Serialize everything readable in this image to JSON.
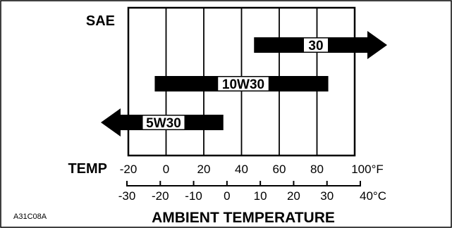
{
  "chart_data": {
    "type": "range-chart",
    "title": "",
    "xlabel": "AMBIENT TEMPERATURE",
    "ylabel": "SAE",
    "row_label": "TEMP",
    "figure_code": "A31C08A",
    "fahrenheit_axis": {
      "ticks": [
        "-20",
        "0",
        "20",
        "40",
        "60",
        "80",
        "100°F"
      ],
      "range": [
        -20,
        100
      ]
    },
    "celsius_axis": {
      "ticks": [
        "-30",
        "-20",
        "-10",
        "0",
        "10",
        "20",
        "30",
        "40°C"
      ],
      "range": [
        -30,
        40
      ]
    },
    "grid": true,
    "series": [
      {
        "name": "30",
        "start_f": 50,
        "end_f": 100,
        "unit": "°F",
        "extends": "up"
      },
      {
        "name": "10W30",
        "start_f": -6,
        "end_f": 86,
        "unit": "°F",
        "extends": "none"
      },
      {
        "name": "5W30",
        "start_f": -20,
        "end_f": 30,
        "unit": "°F",
        "extends": "down"
      }
    ]
  },
  "colors": {
    "ink": "#000000",
    "background": "#ffffff",
    "label_box": "#ffffff"
  }
}
